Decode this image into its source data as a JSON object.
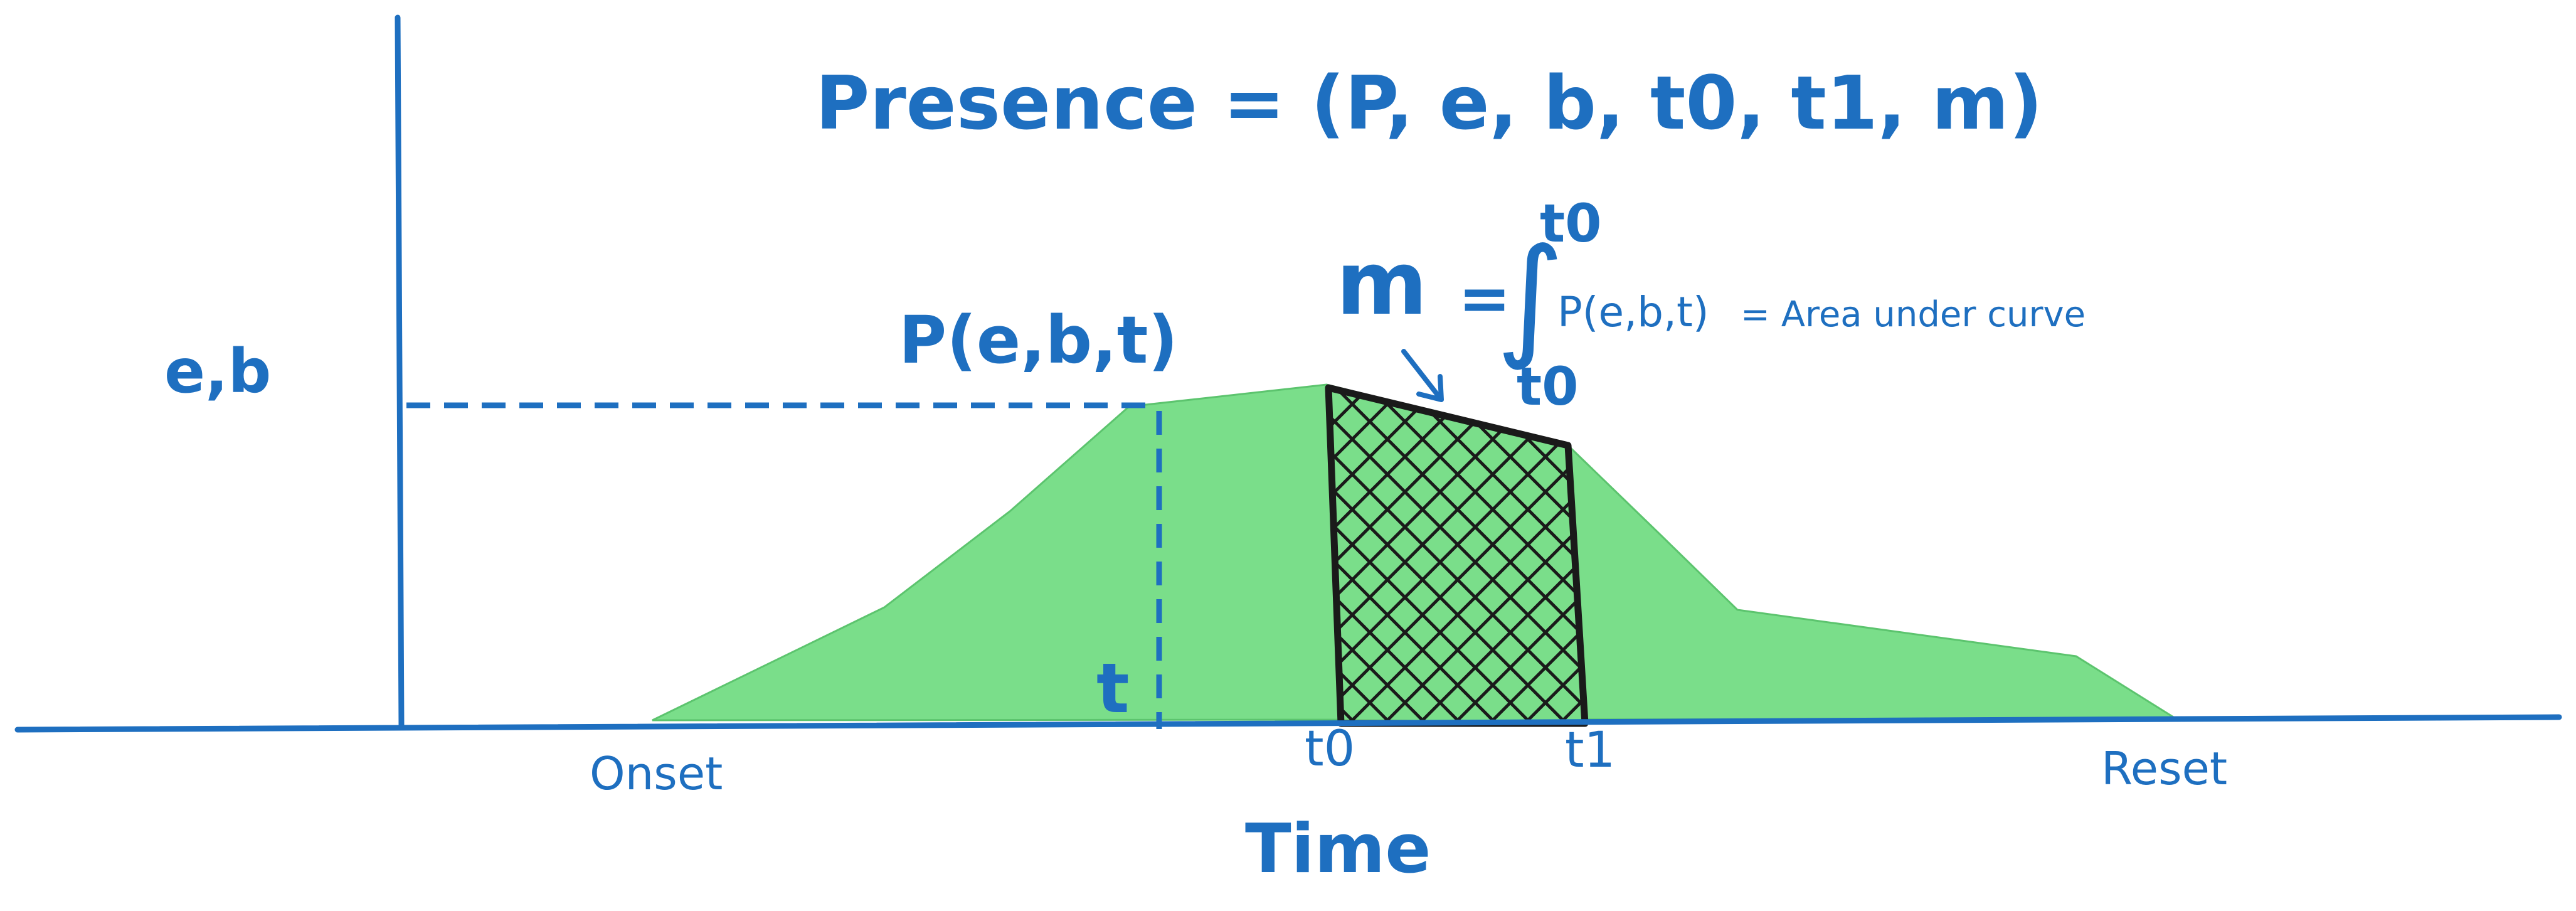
{
  "title": "Presence = (P, e, b, t0, t1, m)",
  "y_axis_label": "e,b",
  "x_axis_label": "Time",
  "curve_label": "P(e,b,t)",
  "t_marker": "t",
  "formula": {
    "lhs": "m",
    "equals": "=",
    "integral": "∫",
    "upper_limit": "t0",
    "lower_limit": "t0",
    "integrand": "P(e,b,t)",
    "rhs": "= Area under curve"
  },
  "ticks": {
    "onset": "Onset",
    "t0": "t0",
    "t1": "t1",
    "reset": "Reset"
  },
  "colors": {
    "ink": "#1e6fc0",
    "fill": "#7ade8a",
    "hatch": "#1a1a1a"
  }
}
